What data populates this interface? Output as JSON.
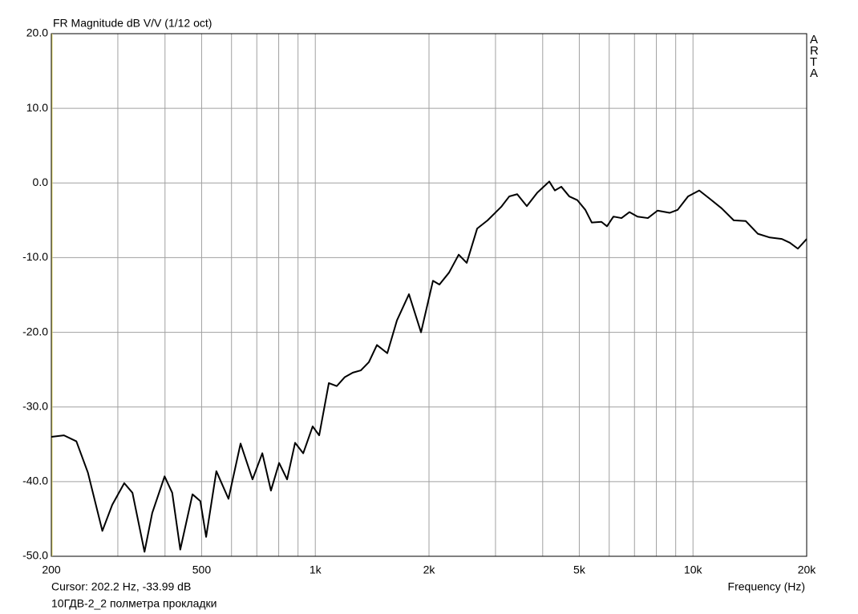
{
  "chart_data": {
    "type": "line",
    "title": "FR Magnitude dB V/V (1/12 oct)",
    "watermark": "ARTA",
    "x_label": "Frequency (Hz)",
    "cursor_readout": "Cursor: 202.2 Hz, -33.99 dB",
    "x_scale": "log",
    "grid": true,
    "xlim": [
      200,
      20000
    ],
    "xticks": [
      200,
      500,
      {
        "value": 1000,
        "label": "1k"
      },
      {
        "value": 2000,
        "label": "2k"
      },
      {
        "value": 5000,
        "label": "5k"
      },
      {
        "value": 10000,
        "label": "10k"
      },
      {
        "value": 20000,
        "label": "20k"
      }
    ],
    "xgrid": [
      300,
      400,
      600,
      700,
      800,
      900,
      3000,
      4000,
      6000,
      7000,
      8000,
      9000
    ],
    "ylim": [
      -50,
      20
    ],
    "yticks": [
      {
        "value": -50,
        "label": "-50.0"
      },
      {
        "value": -40,
        "label": "-40.0"
      },
      {
        "value": -30,
        "label": "-30.0"
      },
      {
        "value": -20,
        "label": "-20.0"
      },
      {
        "value": -10,
        "label": "-10.0"
      },
      {
        "value": 0,
        "label": "0.0"
      },
      {
        "value": 10,
        "label": "10.0"
      },
      {
        "value": 20,
        "label": "20.0"
      }
    ],
    "x": [
      200,
      216,
      233,
      250,
      273,
      290,
      312,
      328,
      353,
      370,
      399,
      418,
      439,
      473,
      496,
      514,
      547,
      589,
      634,
      682,
      724,
      763,
      802,
      842,
      884,
      929,
      984,
      1024,
      1086,
      1140,
      1197,
      1257,
      1320,
      1386,
      1456,
      1551,
      1645,
      1770,
      1905,
      2049,
      2131,
      2260,
      2397,
      2517,
      2683,
      2859,
      3106,
      3262,
      3424,
      3631,
      3870,
      4164,
      4308,
      4480,
      4705,
      4942,
      5188,
      5396,
      5722,
      5920,
      6157,
      6467,
      6790,
      7130,
      7595,
      8057,
      8673,
      9106,
      9705,
      10388,
      11072,
      11912,
      12822,
      13796,
      14844,
      15974,
      17188,
      18048,
      18952,
      20000
    ],
    "series": [
      {
        "name": "10ГДВ-2_2 полметра прокладки",
        "color": "#000000",
        "values": [
          -34.0,
          -33.8,
          -34.6,
          -38.8,
          -46.6,
          -43.1,
          -40.2,
          -41.5,
          -49.4,
          -44.2,
          -39.3,
          -41.5,
          -49.1,
          -41.7,
          -42.6,
          -47.4,
          -38.6,
          -42.3,
          -34.9,
          -39.7,
          -36.2,
          -41.2,
          -37.5,
          -39.7,
          -34.8,
          -36.2,
          -32.6,
          -33.8,
          -26.8,
          -27.2,
          -26.0,
          -25.4,
          -25.1,
          -24.0,
          -21.7,
          -22.8,
          -18.4,
          -14.9,
          -20.0,
          -13.1,
          -13.6,
          -12.0,
          -9.6,
          -10.7,
          -6.1,
          -5.0,
          -3.2,
          -1.8,
          -1.5,
          -3.1,
          -1.3,
          0.2,
          -1.0,
          -0.5,
          -1.8,
          -2.3,
          -3.6,
          -5.3,
          -5.2,
          -5.8,
          -4.5,
          -4.7,
          -3.9,
          -4.5,
          -4.7,
          -3.7,
          -4.0,
          -3.6,
          -1.8,
          -1.0,
          -2.1,
          -3.4,
          -5.0,
          -5.1,
          -6.8,
          -7.3,
          -7.5,
          -8.0,
          -8.8,
          -7.5
        ]
      }
    ]
  }
}
